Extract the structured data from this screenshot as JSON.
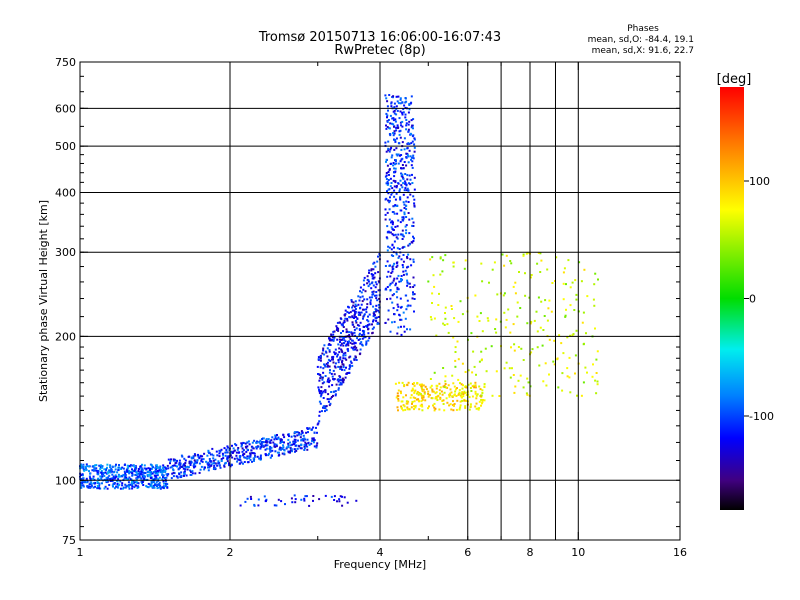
{
  "chart_data": {
    "type": "scatter",
    "title": "Tromsø 20150713 16:06:00-16:07:43",
    "subtitle": "RwPretec (8p)",
    "stats": {
      "heading": "Phases",
      "line_o": "mean, sd,O: -84.4, 19.1",
      "line_x": "mean, sd,X:  91.6, 22.7"
    },
    "xlabel": "Frequency [MHz]",
    "ylabel": "Stationary phase Virtual Height [km]",
    "x_scale": "log",
    "y_scale": "log",
    "xlim": [
      1,
      16
    ],
    "ylim": [
      75,
      750
    ],
    "x_ticks": [
      1,
      2,
      4,
      6,
      8,
      10,
      16
    ],
    "x_tick_labels": [
      "1",
      "2",
      "4",
      "6",
      "8",
      "10",
      "16"
    ],
    "y_ticks": [
      75,
      100,
      200,
      300,
      400,
      500,
      600,
      750
    ],
    "y_tick_labels": [
      "75",
      "100",
      "200",
      "300",
      "400",
      "500",
      "600",
      "750"
    ],
    "x_grid": [
      2,
      4,
      6,
      7,
      8,
      9,
      10
    ],
    "y_grid": [
      100,
      200,
      300,
      400,
      500,
      600
    ],
    "colorbar": {
      "label": "[deg]",
      "range": [
        -180,
        180
      ],
      "ticks": [
        100,
        0,
        -100
      ],
      "tick_labels": [
        "100",
        "0",
        "-100"
      ]
    },
    "point_groups": [
      {
        "region": "low base trace",
        "f_range": [
          1.0,
          1.5
        ],
        "h_range": [
          96,
          108
        ],
        "phase": -95,
        "density": "high"
      },
      {
        "region": "E-F transition",
        "f_range": [
          1.5,
          3.0
        ],
        "h_range": [
          100,
          130
        ],
        "phase": -110,
        "density": "high"
      },
      {
        "region": "F-layer rise",
        "f_range": [
          3.0,
          4.0
        ],
        "h_range": [
          130,
          300
        ],
        "phase": -120,
        "density": "high"
      },
      {
        "region": "O-mode cusp",
        "f_range": [
          4.1,
          4.7
        ],
        "h_range": [
          200,
          640
        ],
        "phase": -110,
        "density": "high"
      },
      {
        "region": "X-mode trace",
        "f_range": [
          4.3,
          6.5
        ],
        "h_range": [
          140,
          160
        ],
        "phase": 90,
        "density": "medium"
      },
      {
        "region": "high-frequency scatter",
        "f_range": [
          5.0,
          11.0
        ],
        "h_range": [
          150,
          300
        ],
        "phase": 60,
        "density": "medium"
      },
      {
        "region": "low echoes",
        "f_range": [
          2.1,
          3.6
        ],
        "h_range": [
          88,
          93
        ],
        "phase": -115,
        "density": "low"
      }
    ]
  }
}
